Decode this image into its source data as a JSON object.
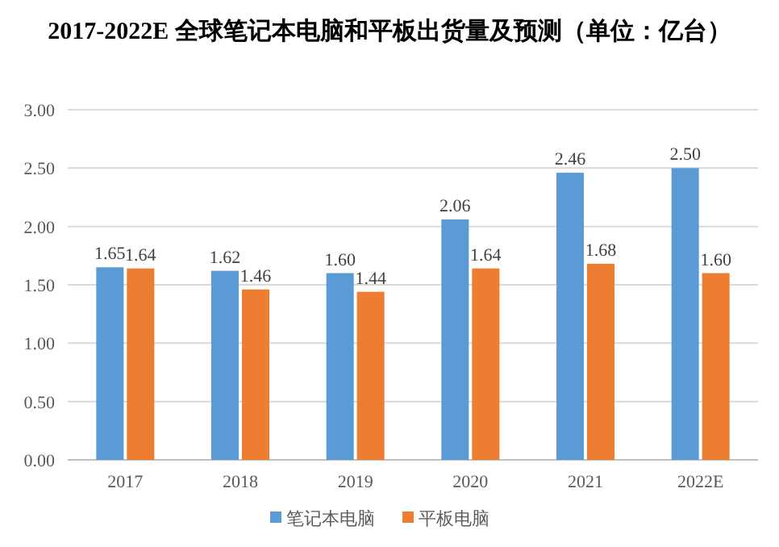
{
  "chart_data": {
    "type": "bar",
    "title": "2017-2022E 全球笔记本电脑和平板出货量及预测（单位：亿台）",
    "categories": [
      "2017",
      "2018",
      "2019",
      "2020",
      "2021",
      "2022E"
    ],
    "series": [
      {
        "name": "笔记本电脑",
        "color": "#5b9bd5",
        "values": [
          1.65,
          1.62,
          1.6,
          2.06,
          2.46,
          2.5
        ],
        "value_labels": [
          "1.65",
          "1.62",
          "1.60",
          "2.06",
          "2.46",
          "2.50"
        ]
      },
      {
        "name": "平板电脑",
        "color": "#ed7d31",
        "values": [
          1.64,
          1.46,
          1.44,
          1.64,
          1.68,
          1.6
        ],
        "value_labels": [
          "1.64",
          "1.46",
          "1.44",
          "1.64",
          "1.68",
          "1.60"
        ]
      }
    ],
    "ylim": [
      0,
      3
    ],
    "yticks": [
      {
        "value": 0,
        "label": "0.00"
      },
      {
        "value": 0.5,
        "label": "0.50"
      },
      {
        "value": 1,
        "label": "1.00"
      },
      {
        "value": 1.5,
        "label": "1.50"
      },
      {
        "value": 2,
        "label": "2.00"
      },
      {
        "value": 2.5,
        "label": "2.50"
      },
      {
        "value": 3,
        "label": "3.00"
      }
    ],
    "grid": "y",
    "legend": "bottom"
  }
}
